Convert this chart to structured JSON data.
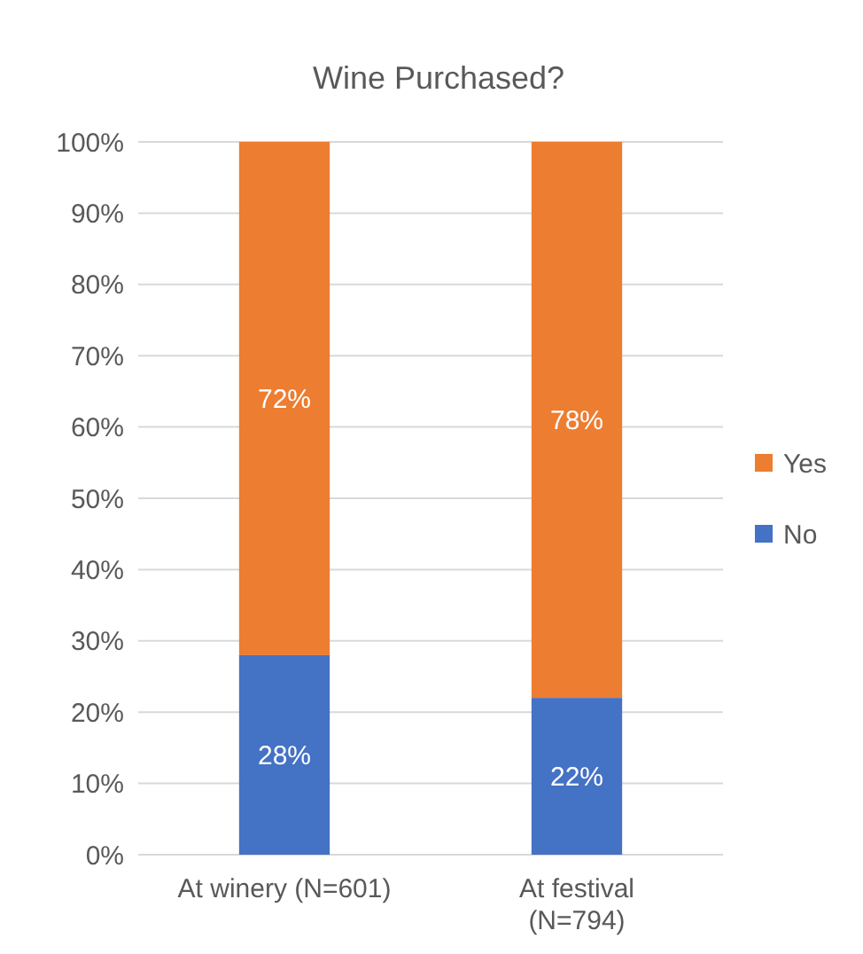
{
  "chart_data": {
    "type": "bar",
    "title": "Wine Purchased?",
    "stacked": true,
    "categories": [
      "At winery (N=601)",
      "At festival (N=794)"
    ],
    "series": [
      {
        "name": "No",
        "color": "#4472c4",
        "values": [
          28,
          22
        ],
        "value_labels": [
          "28%",
          "22%"
        ]
      },
      {
        "name": "Yes",
        "color": "#ed7d31",
        "values": [
          72,
          78
        ],
        "value_labels": [
          "72%",
          "78%"
        ]
      }
    ],
    "ylim": [
      0,
      100
    ],
    "yticks": [
      {
        "value": 0,
        "label": "0%"
      },
      {
        "value": 10,
        "label": "10%"
      },
      {
        "value": 20,
        "label": "20%"
      },
      {
        "value": 30,
        "label": "30%"
      },
      {
        "value": 40,
        "label": "40%"
      },
      {
        "value": 50,
        "label": "50%"
      },
      {
        "value": 60,
        "label": "60%"
      },
      {
        "value": 70,
        "label": "70%"
      },
      {
        "value": 80,
        "label": "80%"
      },
      {
        "value": 90,
        "label": "90%"
      },
      {
        "value": 100,
        "label": "100%"
      }
    ],
    "grid": "y",
    "legend": "right"
  }
}
